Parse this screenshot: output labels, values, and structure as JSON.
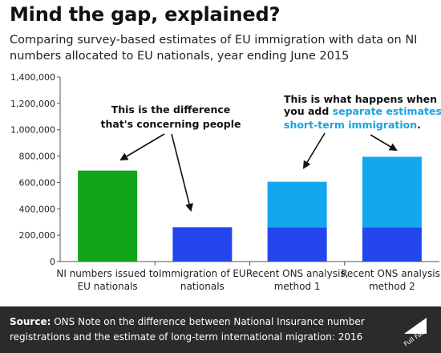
{
  "title": "Mind the gap, explained?",
  "subtitle": "Comparing survey-based estimates of EU immigration with data on NI numbers allocated to EU nationals, year ending June 2015",
  "colors": {
    "green": "#11a61a",
    "dark_blue": "#2346ee",
    "light_blue": "#13a7ef",
    "highlight_text": "#1aa3e0",
    "footer_bg": "#2b2b2b"
  },
  "annotations": {
    "left_line1": "This is the difference",
    "left_line2": "that's concerning people",
    "right_line1": "This is what happens when",
    "right_line2_plain": "you add ",
    "right_line2_highlight": "separate estimates of",
    "right_line3_highlight": "short-term  immigration",
    "right_line3_end": "."
  },
  "chart_data": {
    "type": "bar",
    "stacked": true,
    "categories": [
      [
        "NI numbers issued to",
        "EU nationals"
      ],
      [
        "Immigration of EU",
        "nationals"
      ],
      [
        "Recent ONS analysis,",
        "method 1"
      ],
      [
        "Recent ONS analysis,",
        "method 2"
      ]
    ],
    "series": [
      {
        "color": "green",
        "values": [
          690000,
          0,
          0,
          0
        ]
      },
      {
        "color": "dark_blue",
        "values": [
          0,
          260000,
          260000,
          260000
        ]
      },
      {
        "color": "light_blue",
        "values": [
          0,
          0,
          345000,
          535000
        ]
      }
    ],
    "y_ticks": [
      "0",
      "200,000",
      "400,000",
      "600,000",
      "800,000",
      "1,000,000",
      "1,200,000",
      "1,400,000"
    ],
    "ylim": [
      0,
      1400000
    ],
    "grid": false
  },
  "footer": {
    "source_label": "Source:",
    "source_text": "ONS Note on the difference between National Insurance number registrations and the estimate of long-term international migration: 2016",
    "logo_text": "Full Fact"
  }
}
